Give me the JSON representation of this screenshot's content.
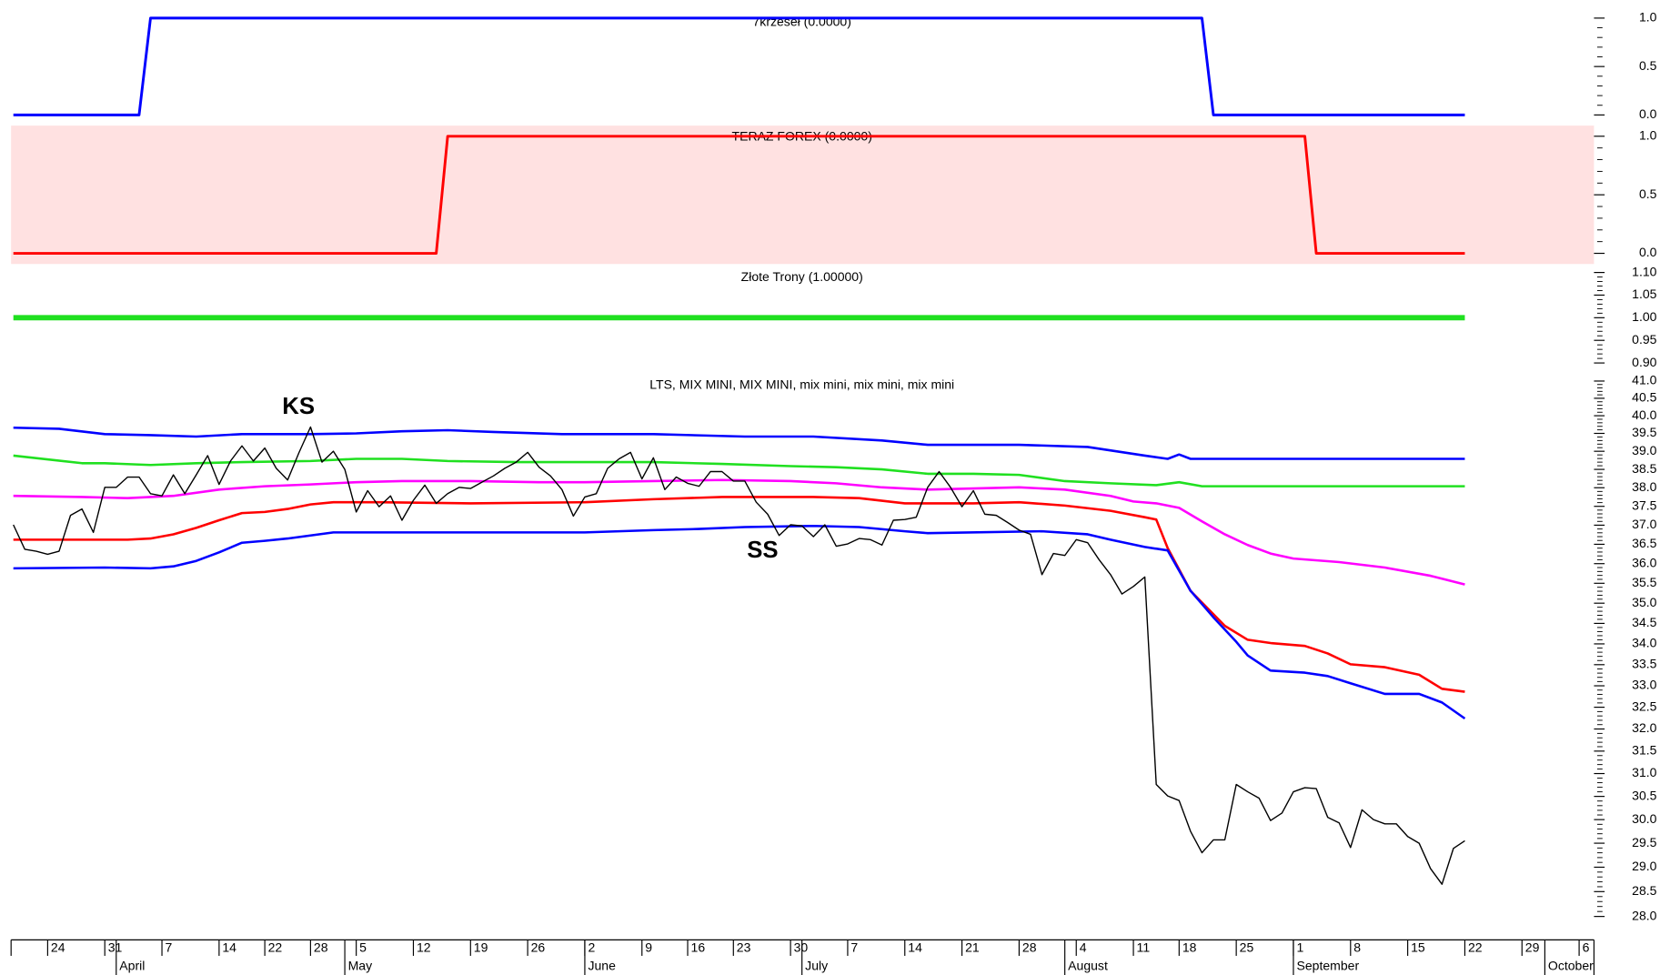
{
  "chart_data": [
    {
      "type": "step",
      "title": "7krzeseł (0.0000)",
      "ylim": [
        0,
        1
      ],
      "yticks": [
        {
          "value": 0,
          "label": "0.0"
        },
        0.5,
        {
          "value": 1,
          "label": "1.0"
        }
      ],
      "series": [
        {
          "color": "#0000ff",
          "x": [
            0,
            11,
            12,
            104,
            105,
            127
          ],
          "values": [
            0,
            0,
            1,
            1,
            0,
            0
          ]
        }
      ]
    },
    {
      "type": "step",
      "title": "TERAZ FOREX (0.0000)",
      "ylim": [
        0,
        1
      ],
      "background": "#ffe1e1",
      "yticks": [
        {
          "value": 0,
          "label": "0.0"
        },
        0.5,
        {
          "value": 1,
          "label": "1.0"
        }
      ],
      "series": [
        {
          "color": "#ff0000",
          "x": [
            0,
            37,
            38,
            113,
            114,
            127
          ],
          "values": [
            0,
            0,
            1,
            1,
            0,
            0
          ]
        }
      ]
    },
    {
      "type": "line",
      "title": "Złote Trony (1.00000)",
      "ylim": [
        0.9,
        1.1
      ],
      "yticks": [
        {
          "value": 0.9,
          "label": "0.90"
        },
        0.95,
        {
          "value": 1,
          "label": "1.00"
        },
        1.05,
        {
          "value": 1.1,
          "label": "1.10"
        }
      ],
      "series": [
        {
          "color": "#20e020",
          "width": 5,
          "x": [
            0,
            127
          ],
          "values": [
            1,
            1
          ]
        }
      ]
    },
    {
      "type": "line",
      "title": "LTS, MIX MINI, MIX MINI, mix mini, mix mini, mix mini",
      "log_scale": true,
      "ylim": [
        28,
        41
      ],
      "yticks": [
        {
          "value": 28,
          "label": "28.0"
        },
        28.5,
        {
          "value": 29,
          "label": "29.0"
        },
        29.5,
        {
          "value": 30,
          "label": "30.0"
        },
        30.5,
        {
          "value": 31,
          "label": "31.0"
        },
        31.5,
        {
          "value": 32,
          "label": "32.0"
        },
        32.5,
        {
          "value": 33,
          "label": "33.0"
        },
        33.5,
        {
          "value": 34,
          "label": "34.0"
        },
        34.5,
        {
          "value": 35,
          "label": "35.0"
        },
        35.5,
        {
          "value": 36,
          "label": "36.0"
        },
        36.5,
        {
          "value": 37,
          "label": "37.0"
        },
        37.5,
        {
          "value": 38,
          "label": "38.0"
        },
        38.5,
        {
          "value": 39,
          "label": "39.0"
        },
        39.5,
        {
          "value": 40,
          "label": "40.0"
        },
        40.5,
        {
          "value": 41,
          "label": "41.0"
        }
      ],
      "xlim": [
        -0.2,
        138.3
      ],
      "xticks": [
        {
          "value": 3,
          "label": "24"
        },
        {
          "value": 8,
          "label": "31"
        },
        {
          "value": 13,
          "label": "7"
        },
        {
          "value": 18,
          "label": "14"
        },
        {
          "value": 22,
          "label": "22"
        },
        {
          "value": 26,
          "label": "28"
        },
        {
          "value": 30,
          "label": "5"
        },
        {
          "value": 35,
          "label": "12"
        },
        {
          "value": 40,
          "label": "19"
        },
        {
          "value": 45,
          "label": "26"
        },
        {
          "value": 50,
          "label": "2"
        },
        {
          "value": 55,
          "label": "9"
        },
        {
          "value": 59,
          "label": "16"
        },
        {
          "value": 63,
          "label": "23"
        },
        {
          "value": 68,
          "label": "30"
        },
        {
          "value": 73,
          "label": "7"
        },
        {
          "value": 78,
          "label": "14"
        },
        {
          "value": 83,
          "label": "21"
        },
        {
          "value": 88,
          "label": "28"
        },
        {
          "value": 93,
          "label": "4"
        },
        {
          "value": 98,
          "label": "11"
        },
        {
          "value": 102,
          "label": "18"
        },
        {
          "value": 107,
          "label": "25"
        },
        {
          "value": 112,
          "label": "1"
        },
        {
          "value": 117,
          "label": "8"
        },
        {
          "value": 122,
          "label": "15"
        },
        {
          "value": 127,
          "label": "22"
        },
        {
          "value": 132,
          "label": "29"
        },
        {
          "value": 137,
          "label": "6"
        }
      ],
      "month_ticks": [
        {
          "value": 9,
          "label": "April"
        },
        {
          "value": 29,
          "label": "May"
        },
        {
          "value": 50,
          "label": "June"
        },
        {
          "value": 69,
          "label": "July"
        },
        {
          "value": 92,
          "label": "August"
        },
        {
          "value": 112,
          "label": "September"
        },
        {
          "value": 134,
          "label": "October"
        }
      ],
      "annotations": [
        "KS",
        "SS"
      ],
      "series": [
        {
          "color": "#0000ff",
          "width": 2.2,
          "x": [
            0,
            4,
            8,
            12,
            16,
            20,
            26,
            30,
            34,
            38,
            42,
            48,
            56,
            64,
            70,
            76,
            80,
            84,
            88,
            94,
            99,
            101,
            102,
            103,
            127
          ],
          "values": [
            39.66,
            39.63,
            39.48,
            39.45,
            39.41,
            39.48,
            39.48,
            39.5,
            39.56,
            39.59,
            39.54,
            39.48,
            39.48,
            39.41,
            39.41,
            39.3,
            39.18,
            39.18,
            39.18,
            39.12,
            38.88,
            38.79,
            38.91,
            38.79,
            38.79
          ]
        },
        {
          "color": "#20e020",
          "width": 2.2,
          "x": [
            0,
            6,
            8,
            12,
            16,
            20,
            26,
            30,
            34,
            38,
            44,
            50,
            56,
            62,
            68,
            72,
            76,
            80,
            84,
            88,
            92,
            96,
            100,
            102,
            104,
            127
          ],
          "values": [
            38.88,
            38.67,
            38.67,
            38.62,
            38.67,
            38.7,
            38.73,
            38.79,
            38.79,
            38.73,
            38.7,
            38.7,
            38.7,
            38.65,
            38.59,
            38.56,
            38.5,
            38.38,
            38.38,
            38.35,
            38.18,
            38.12,
            38.07,
            38.15,
            38.04,
            38.04
          ]
        },
        {
          "color": "#ff00ff",
          "width": 2.2,
          "x": [
            0,
            6,
            10,
            14,
            18,
            22,
            26,
            30,
            34,
            40,
            46,
            50,
            56,
            62,
            68,
            72,
            76,
            80,
            84,
            88,
            92,
            96,
            98,
            100,
            102,
            104,
            106,
            108,
            110,
            112,
            116,
            120,
            124,
            127
          ],
          "values": [
            37.78,
            37.75,
            37.72,
            37.78,
            37.95,
            38.04,
            38.09,
            38.15,
            38.18,
            38.18,
            38.15,
            38.15,
            38.18,
            38.21,
            38.18,
            38.12,
            38.01,
            37.95,
            37.98,
            38.01,
            37.95,
            37.78,
            37.63,
            37.58,
            37.46,
            37.1,
            36.76,
            36.48,
            36.26,
            36.13,
            36.04,
            35.9,
            35.69,
            35.47
          ]
        },
        {
          "color": "#ff0000",
          "width": 2.2,
          "x": [
            0,
            10,
            12,
            14,
            16,
            18,
            20,
            22,
            24,
            26,
            28,
            32,
            40,
            50,
            56,
            62,
            70,
            74,
            78,
            84,
            88,
            92,
            96,
            99,
            100,
            101,
            103,
            106,
            108,
            110,
            113,
            115,
            117,
            120,
            123,
            125,
            127
          ],
          "values": [
            36.62,
            36.62,
            36.65,
            36.76,
            36.93,
            37.13,
            37.32,
            37.35,
            37.43,
            37.55,
            37.61,
            37.61,
            37.58,
            37.61,
            37.69,
            37.75,
            37.75,
            37.72,
            37.58,
            37.58,
            37.61,
            37.52,
            37.38,
            37.21,
            37.15,
            36.4,
            35.31,
            34.44,
            34.1,
            34.02,
            33.95,
            33.77,
            33.51,
            33.44,
            33.26,
            32.93,
            32.86
          ]
        },
        {
          "color": "#0000ff",
          "width": 2.2,
          "x": [
            0,
            8,
            12,
            14,
            16,
            18,
            20,
            22,
            24,
            26,
            28,
            40,
            50,
            56,
            60,
            64,
            70,
            74,
            78,
            80,
            90,
            94,
            96,
            99,
            101,
            103,
            105,
            107,
            108,
            110,
            113,
            115,
            117,
            120,
            123,
            125,
            127
          ],
          "values": [
            35.88,
            35.9,
            35.88,
            35.93,
            36.07,
            36.29,
            36.54,
            36.59,
            36.65,
            36.73,
            36.81,
            36.81,
            36.81,
            36.87,
            36.9,
            36.95,
            36.98,
            36.95,
            36.84,
            36.79,
            36.84,
            36.76,
            36.62,
            36.43,
            36.34,
            35.31,
            34.65,
            34.05,
            33.72,
            33.36,
            33.31,
            33.23,
            33.06,
            32.81,
            32.81,
            32.61,
            32.24
          ]
        },
        {
          "color": "#000000",
          "width": 1.2,
          "values": [
            37.01,
            36.37,
            36.32,
            36.24,
            36.32,
            37.26,
            37.43,
            36.81,
            38.01,
            38.01,
            38.29,
            38.29,
            37.84,
            37.78,
            38.35,
            37.84,
            38.35,
            38.88,
            38.09,
            38.73,
            39.15,
            38.73,
            39.09,
            38.53,
            38.21,
            38.97,
            39.68,
            38.7,
            39.0,
            38.5,
            37.35,
            37.92,
            37.49,
            37.78,
            37.13,
            37.66,
            38.07,
            37.58,
            37.84,
            38.01,
            37.98,
            38.15,
            38.32,
            38.53,
            38.7,
            38.97,
            38.56,
            38.32,
            37.95,
            37.24,
            37.75,
            37.84,
            38.53,
            38.79,
            38.97,
            38.24,
            38.82,
            37.95,
            38.29,
            38.12,
            38.04,
            38.44,
            38.44,
            38.18,
            38.18,
            37.61,
            37.29,
            36.73,
            37.01,
            36.98,
            36.7,
            37.01,
            36.45,
            36.51,
            36.65,
            36.62,
            36.48,
            37.13,
            37.15,
            37.21,
            38.01,
            38.44,
            38.01,
            37.49,
            37.92,
            37.29,
            37.26,
            37.07,
            36.87,
            36.76,
            35.72,
            36.26,
            36.21,
            36.62,
            36.54,
            36.1,
            35.72,
            35.23,
            35.42,
            35.66,
            30.76,
            30.51,
            30.41,
            29.75,
            29.3,
            29.57,
            29.57,
            30.76,
            30.6,
            30.46,
            29.98,
            30.14,
            30.6,
            30.69,
            30.67,
            30.05,
            29.93,
            29.41,
            30.21,
            30.0,
            29.91,
            29.91,
            29.64,
            29.5,
            28.97,
            28.65,
            29.39,
            29.55
          ]
        }
      ]
    }
  ]
}
